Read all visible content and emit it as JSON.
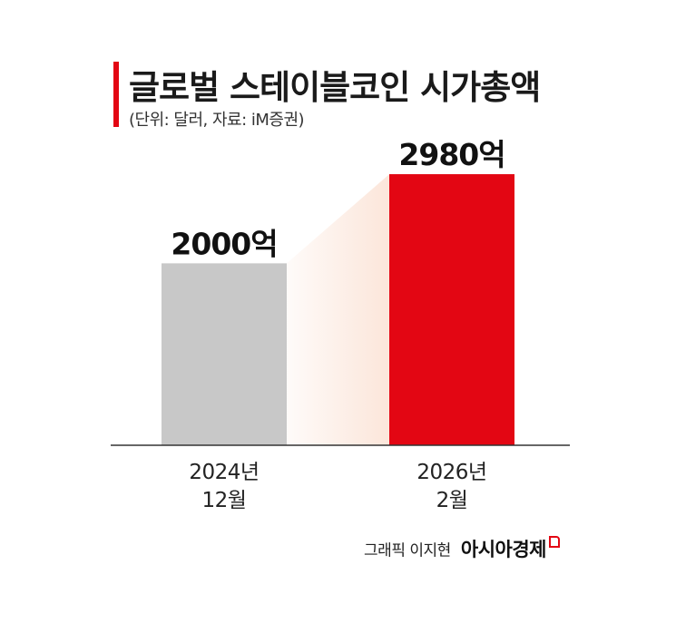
{
  "title": "글로벌 스테이블코인 시가총액",
  "subtitle": "(단위: 달러, 자료: iM증권)",
  "credit": {
    "text": "그래픽 이지현",
    "brand": "아시아경제"
  },
  "colors": {
    "accent": "#e30613",
    "bar_first": "#c8c8c8",
    "bar_second": "#e30613",
    "axis": "#333333",
    "gradient_start": "#fbe3d6"
  },
  "chart_data": {
    "type": "bar",
    "categories": [
      [
        "2024년",
        "12월"
      ],
      [
        "2026년",
        "2월"
      ]
    ],
    "values": [
      2000,
      2980
    ],
    "value_labels": [
      "2000억",
      "2980억"
    ],
    "unit": "억 달러",
    "ylim": [
      0,
      3200
    ],
    "grid": false
  }
}
